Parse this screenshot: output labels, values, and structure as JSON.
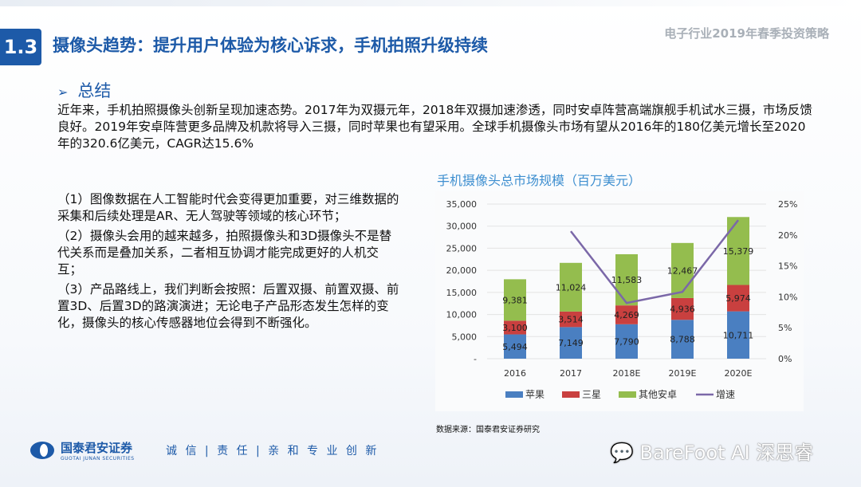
{
  "header": {
    "section_number": "1.3",
    "title": "摄像头趋势：提升用户体验为核心诉求，手机拍照升级持续",
    "report_name": "电子行业2019年春季投资策略"
  },
  "summary": {
    "heading": "总结",
    "arrow_icon": "chevron-right-icon",
    "intro": "近年来，手机拍照摄像头创新呈现加速态势。2017年为双摄元年，2018年双摄加速渗透，同时安卓阵营高端旗舰手机试水三摄，市场反馈良好。2019年安卓阵营更多品牌及机款将导入三摄，同时苹果也有望采用。全球手机摄像头市场有望从2016年的180亿美元增长至2020年的320.6亿美元，CAGR达15.6%",
    "points": [
      "（1）图像数据在人工智能时代会变得更加重要，对三维数据的采集和后续处理是AR、无人驾驶等领域的核心环节；",
      "（2）摄像头会用的越来越多，拍照摄像头和3D摄像头不是替代关系而是叠加关系，二者相互协调才能完成更好的人机交互；",
      "（3）产品路线上，我们判断会按照：后置双摄、前置双摄、前置3D、后置3D的路演演进；无论电子产品形态发生怎样的变化，摄像头的核心传感器地位会得到不断强化。"
    ]
  },
  "chart_data": {
    "type": "bar",
    "stacked": true,
    "title": "手机摄像头总市场规模（百万美元）",
    "categories": [
      "2016",
      "2017",
      "2018E",
      "2019E",
      "2020E"
    ],
    "series": [
      {
        "name": "苹果",
        "color": "#4a7fc1",
        "values": [
          5494,
          7149,
          7790,
          8788,
          10711
        ],
        "labels": [
          "5,494",
          "7,149",
          "7,790",
          "8,788",
          "10,711"
        ]
      },
      {
        "name": "三星",
        "color": "#c9403f",
        "values": [
          3100,
          3514,
          4269,
          4936,
          5974
        ],
        "labels": [
          "3,100",
          "3,514",
          "4,269",
          "4,936",
          "5,974"
        ]
      },
      {
        "name": "其他安卓",
        "color": "#94bd4e",
        "values": [
          9381,
          11024,
          11583,
          12467,
          15379
        ],
        "labels": [
          "9,381",
          "11,024",
          "11,583",
          "12,467",
          "15,379"
        ]
      }
    ],
    "line_series": {
      "name": "增速",
      "color": "#7b68a8",
      "axis": "right",
      "values": [
        null,
        20.6,
        9.0,
        10.8,
        22.4
      ]
    },
    "ylim": [
      0,
      35000
    ],
    "yticks": [
      "-",
      "5,000",
      "10,000",
      "15,000",
      "20,000",
      "25,000",
      "30,000",
      "35,000"
    ],
    "y2lim": [
      0,
      25
    ],
    "y2ticks": [
      "0%",
      "5%",
      "10%",
      "15%",
      "20%",
      "25%"
    ],
    "grid": true,
    "legend": "bottom"
  },
  "footer": {
    "source": "数据来源：国泰君安证券研究",
    "company_cn": "国泰君安证券",
    "company_en": "GUOTAI JUNAN SECURITIES",
    "motto": "诚 信 | 责 任 | 亲 和  专 业  创 新",
    "watermark": "BareFoot AI 深思睿"
  }
}
